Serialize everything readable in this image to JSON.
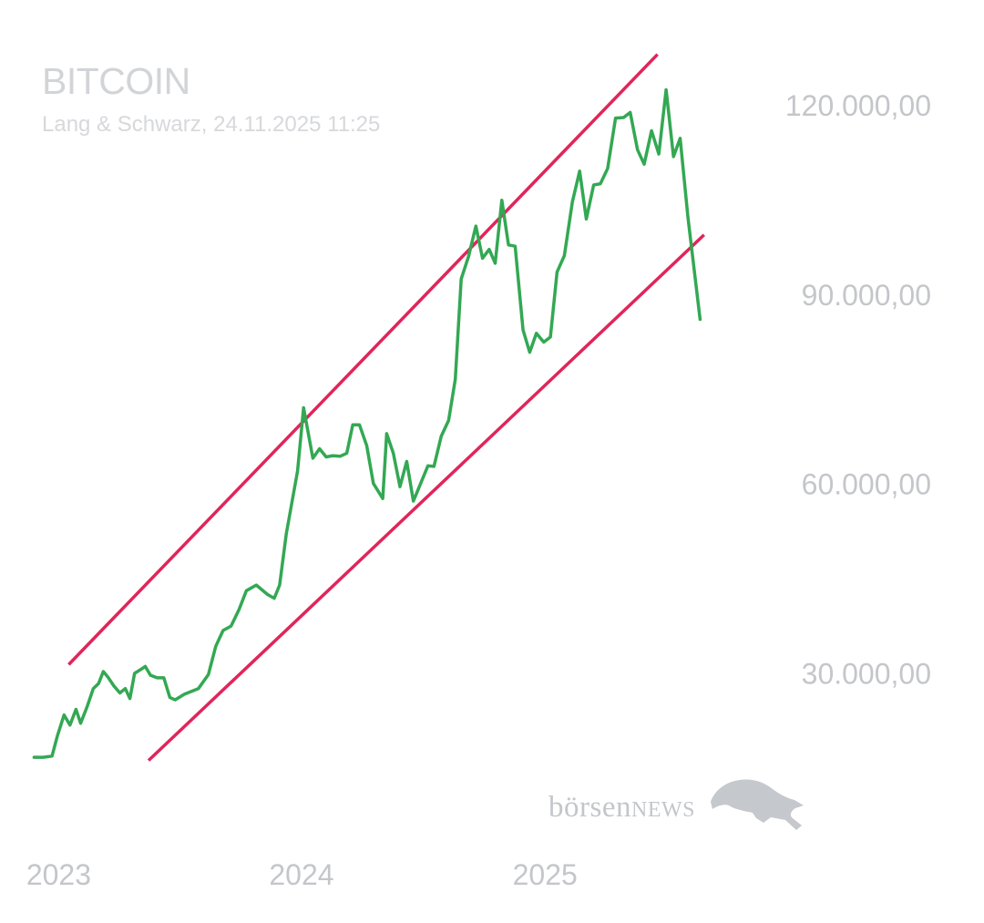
{
  "chart_data": {
    "type": "line",
    "title": "BITCOIN",
    "subtitle": "Lang & Schwarz, 24.11.2025 11:25",
    "xlabel": "",
    "ylabel": "",
    "x_ticks": [
      "2023",
      "2024",
      "2025"
    ],
    "y_ticks": [
      {
        "value": 30000,
        "label": "30.000,00"
      },
      {
        "value": 60000,
        "label": "60.000,00"
      },
      {
        "value": 90000,
        "label": "90.000,00"
      },
      {
        "value": 120000,
        "label": "120.000,00"
      }
    ],
    "ylim": [
      12000,
      132000
    ],
    "xlim": [
      "2022-12-15",
      "2025-12-20"
    ],
    "grid": false,
    "colors": {
      "price": "#33a853",
      "channel": "#e0255a",
      "axis_text": "#c4c6ca",
      "title_text": "#d2d4d7"
    },
    "series": [
      {
        "points": [
          [
            "2023-01-01",
            16600
          ],
          [
            "2023-01-15",
            16600
          ],
          [
            "2023-01-28",
            16800
          ],
          [
            "2023-02-05",
            20000
          ],
          [
            "2023-02-15",
            23300
          ],
          [
            "2023-02-24",
            21700
          ],
          [
            "2023-03-05",
            24200
          ],
          [
            "2023-03-12",
            22000
          ],
          [
            "2023-03-22",
            24700
          ],
          [
            "2023-03-31",
            27500
          ],
          [
            "2023-04-08",
            28300
          ],
          [
            "2023-04-15",
            30200
          ],
          [
            "2023-04-22",
            29300
          ],
          [
            "2023-05-01",
            27900
          ],
          [
            "2023-05-10",
            26800
          ],
          [
            "2023-05-18",
            27500
          ],
          [
            "2023-05-25",
            25900
          ],
          [
            "2023-06-01",
            29900
          ],
          [
            "2023-06-10",
            30500
          ],
          [
            "2023-06-17",
            31000
          ],
          [
            "2023-06-25",
            29600
          ],
          [
            "2023-07-05",
            29200
          ],
          [
            "2023-07-15",
            29200
          ],
          [
            "2023-07-24",
            26100
          ],
          [
            "2023-08-01",
            25700
          ],
          [
            "2023-08-15",
            26600
          ],
          [
            "2023-09-05",
            27500
          ],
          [
            "2023-09-20",
            29700
          ],
          [
            "2023-10-01",
            34200
          ],
          [
            "2023-10-12",
            36700
          ],
          [
            "2023-10-24",
            37400
          ],
          [
            "2023-11-05",
            40000
          ],
          [
            "2023-11-16",
            43000
          ],
          [
            "2023-12-01",
            43900
          ],
          [
            "2023-12-18",
            42400
          ],
          [
            "2023-12-28",
            41800
          ],
          [
            "2024-01-05",
            43900
          ],
          [
            "2024-01-15",
            52000
          ],
          [
            "2024-02-01",
            62000
          ],
          [
            "2024-02-10",
            72000
          ],
          [
            "2024-02-24",
            64000
          ],
          [
            "2024-03-05",
            65500
          ],
          [
            "2024-03-15",
            64200
          ],
          [
            "2024-03-25",
            64400
          ],
          [
            "2024-04-05",
            64300
          ],
          [
            "2024-04-15",
            64800
          ],
          [
            "2024-04-24",
            69300
          ],
          [
            "2024-05-04",
            69300
          ],
          [
            "2024-05-15",
            66000
          ],
          [
            "2024-05-25",
            60000
          ],
          [
            "2024-06-08",
            57600
          ],
          [
            "2024-06-14",
            67900
          ],
          [
            "2024-06-24",
            64800
          ],
          [
            "2024-07-04",
            59500
          ],
          [
            "2024-07-14",
            63500
          ],
          [
            "2024-07-24",
            57200
          ],
          [
            "2024-08-04",
            60000
          ],
          [
            "2024-08-15",
            62800
          ],
          [
            "2024-08-24",
            62700
          ],
          [
            "2024-09-04",
            67500
          ],
          [
            "2024-09-15",
            70000
          ],
          [
            "2024-09-25",
            76500
          ],
          [
            "2024-10-04",
            92400
          ],
          [
            "2024-10-15",
            96000
          ],
          [
            "2024-10-26",
            100800
          ],
          [
            "2024-11-05",
            95700
          ],
          [
            "2024-11-15",
            97100
          ],
          [
            "2024-11-24",
            94900
          ],
          [
            "2024-12-04",
            104900
          ],
          [
            "2024-12-14",
            97800
          ],
          [
            "2024-12-24",
            97600
          ],
          [
            "2025-01-05",
            84300
          ],
          [
            "2025-01-15",
            80800
          ],
          [
            "2025-01-25",
            83800
          ],
          [
            "2025-02-05",
            82400
          ],
          [
            "2025-02-15",
            83200
          ],
          [
            "2025-02-25",
            93500
          ],
          [
            "2025-03-08",
            96100
          ],
          [
            "2025-03-20",
            104600
          ],
          [
            "2025-03-31",
            109500
          ],
          [
            "2025-04-10",
            101900
          ],
          [
            "2025-04-21",
            107300
          ],
          [
            "2025-05-01",
            107500
          ],
          [
            "2025-05-12",
            109900
          ],
          [
            "2025-05-24",
            117900
          ],
          [
            "2025-06-05",
            118000
          ],
          [
            "2025-06-15",
            118800
          ],
          [
            "2025-06-26",
            112900
          ],
          [
            "2025-07-06",
            110600
          ],
          [
            "2025-07-17",
            115900
          ],
          [
            "2025-07-28",
            112200
          ],
          [
            "2025-08-08",
            122400
          ],
          [
            "2025-08-19",
            111800
          ],
          [
            "2025-08-29",
            114700
          ],
          [
            "2025-09-10",
            102000
          ],
          [
            "2025-09-28",
            86000
          ]
        ]
      }
    ],
    "channel_lines": [
      {
        "from": [
          "2023-02-22",
          31300
        ],
        "to": [
          "2025-07-26",
          128000
        ]
      },
      {
        "from": [
          "2023-06-22",
          16100
        ],
        "to": [
          "2025-10-04",
          99400
        ]
      }
    ]
  },
  "watermark": {
    "prefix": "börsen",
    "suffix": "NEWS"
  }
}
